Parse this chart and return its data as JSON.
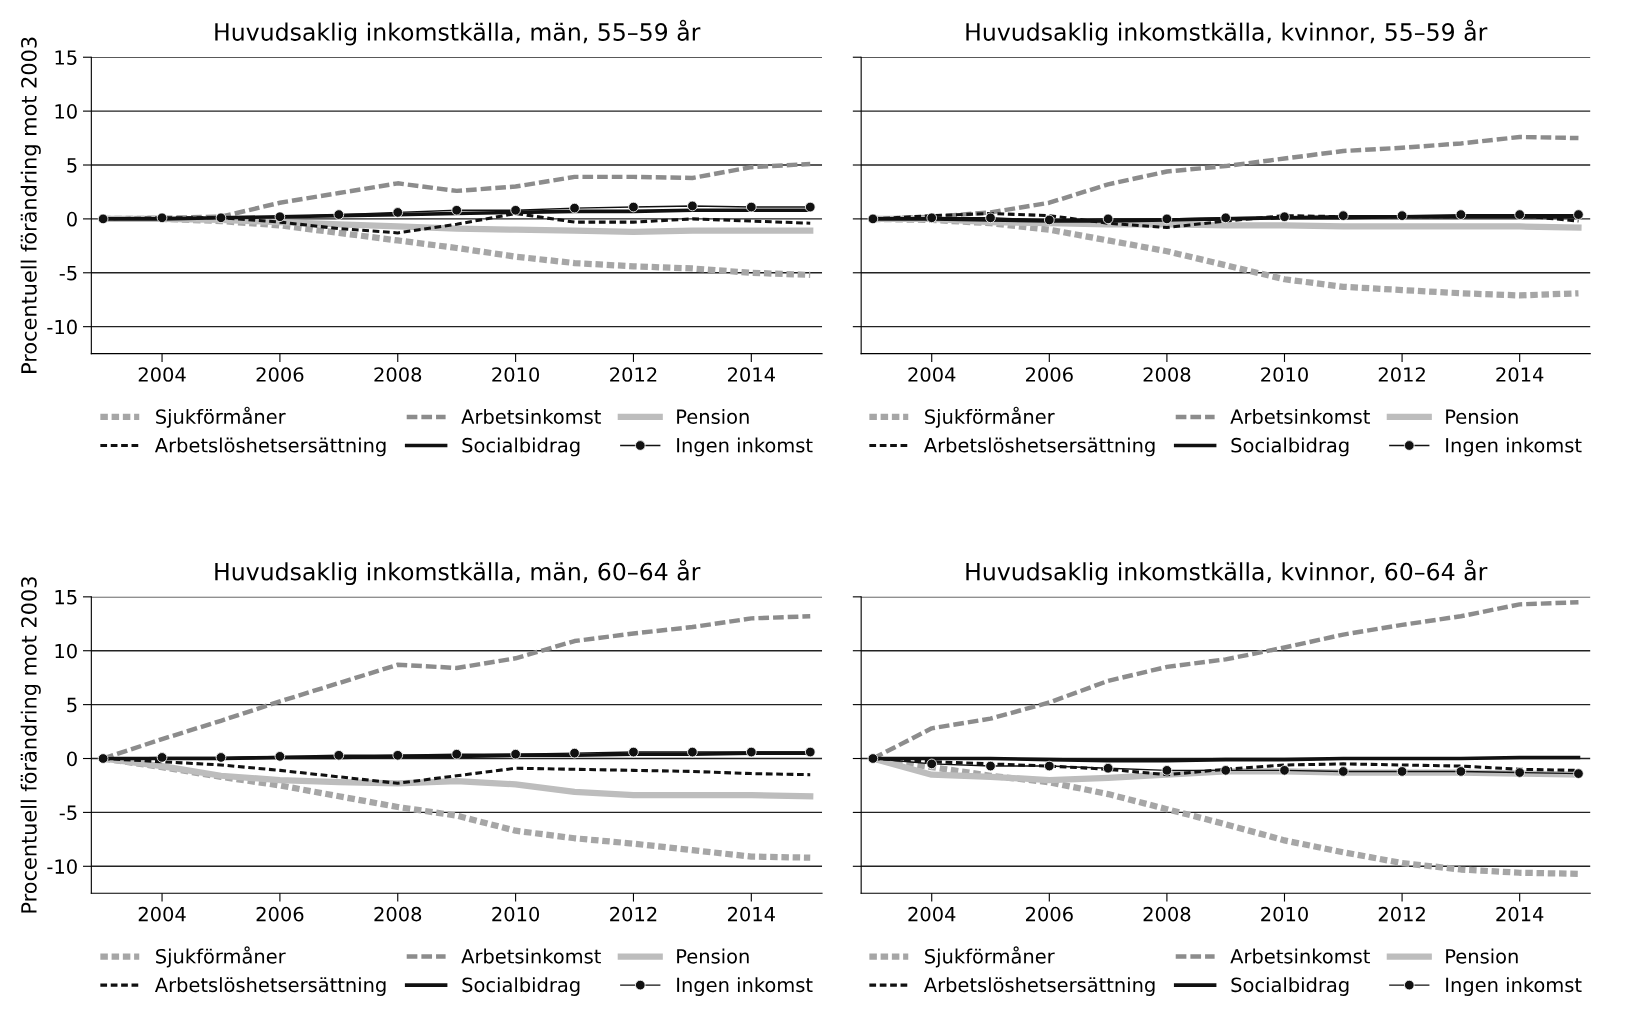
{
  "chart_data": [
    {
      "type": "line",
      "title": "Huvudsaklig inkomstkälla, män, 55–59 år",
      "ylabel": "Procentuell förändring mot 2003",
      "x": [
        2003,
        2004,
        2005,
        2006,
        2007,
        2008,
        2009,
        2010,
        2011,
        2012,
        2013,
        2014,
        2015
      ],
      "xlim": [
        2002.8,
        2015.2
      ],
      "xticks": [
        2004,
        2006,
        2008,
        2010,
        2012,
        2014
      ],
      "ylim": [
        -12.5,
        15
      ],
      "yticks": [
        -10,
        -5,
        0,
        5,
        10,
        15
      ],
      "grid": "y",
      "legend": "bottom",
      "series": [
        {
          "name": "Sjukförmåner",
          "color": "#a6a6a6",
          "line_style": "dashed",
          "values": [
            0,
            0,
            -0.2,
            -0.6,
            -1.3,
            -2.0,
            -2.7,
            -3.5,
            -4.1,
            -4.4,
            -4.6,
            -5.0,
            -5.2
          ]
        },
        {
          "name": "Arbetsinkomst",
          "color": "#8c8c8c",
          "line_style": "dashed",
          "values": [
            0,
            0.1,
            0.2,
            1.5,
            2.4,
            3.3,
            2.6,
            3.0,
            3.9,
            3.9,
            3.8,
            4.8,
            5.1
          ]
        },
        {
          "name": "Pension",
          "color": "#bdbdbd",
          "line_style": "solid",
          "values": [
            0,
            0,
            -0.1,
            -0.3,
            -0.5,
            -0.7,
            -0.9,
            -1.0,
            -1.1,
            -1.2,
            -1.1,
            -1.1,
            -1.1
          ]
        },
        {
          "name": "Arbetslöshetsersättning",
          "color": "#111111",
          "line_style": "dashed",
          "values": [
            0,
            0.1,
            0.1,
            -0.3,
            -0.9,
            -1.3,
            -0.5,
            0.5,
            -0.3,
            -0.3,
            0.0,
            -0.2,
            -0.4
          ]
        },
        {
          "name": "Socialbidrag",
          "color": "#111111",
          "line_style": "solid",
          "values": [
            0,
            0,
            0.1,
            0.2,
            0.3,
            0.4,
            0.5,
            0.6,
            0.7,
            0.7,
            0.8,
            0.8,
            0.8
          ]
        },
        {
          "name": "Ingen inkomst",
          "color": "#111111",
          "line_style": "solid",
          "marker": "circle",
          "values": [
            0,
            0.1,
            0.1,
            0.2,
            0.4,
            0.6,
            0.8,
            0.8,
            1.0,
            1.1,
            1.2,
            1.1,
            1.1
          ]
        }
      ]
    },
    {
      "type": "line",
      "title": "Huvudsaklig inkomstkälla, kvinnor, 55–59 år",
      "x": [
        2003,
        2004,
        2005,
        2006,
        2007,
        2008,
        2009,
        2010,
        2011,
        2012,
        2013,
        2014,
        2015
      ],
      "xlim": [
        2002.8,
        2015.2
      ],
      "xticks": [
        2004,
        2006,
        2008,
        2010,
        2012,
        2014
      ],
      "ylim": [
        -12.5,
        15
      ],
      "yticks": [
        -10,
        -5,
        0,
        5,
        10,
        15
      ],
      "grid": "y",
      "legend": "bottom",
      "tick_labels": "x",
      "series": [
        {
          "name": "Sjukförmåner",
          "color": "#a6a6a6",
          "line_style": "dashed",
          "values": [
            0,
            -0.1,
            -0.4,
            -1.0,
            -2.0,
            -3.0,
            -4.3,
            -5.6,
            -6.3,
            -6.6,
            -6.9,
            -7.1,
            -6.9
          ]
        },
        {
          "name": "Arbetsinkomst",
          "color": "#8c8c8c",
          "line_style": "dashed",
          "values": [
            0,
            0.2,
            0.6,
            1.5,
            3.2,
            4.4,
            4.9,
            5.6,
            6.3,
            6.6,
            7.0,
            7.6,
            7.5
          ]
        },
        {
          "name": "Pension",
          "color": "#bdbdbd",
          "line_style": "solid",
          "values": [
            0,
            0,
            -0.3,
            -0.4,
            -0.5,
            -0.5,
            -0.6,
            -0.6,
            -0.7,
            -0.7,
            -0.7,
            -0.7,
            -0.8
          ]
        },
        {
          "name": "Arbetslöshetsersättning",
          "color": "#111111",
          "line_style": "dashed",
          "values": [
            0,
            0.3,
            0.5,
            0.3,
            -0.4,
            -0.8,
            -0.2,
            0.3,
            0.2,
            0.2,
            0.2,
            0.3,
            -0.2
          ]
        },
        {
          "name": "Socialbidrag",
          "color": "#111111",
          "line_style": "solid",
          "values": [
            0,
            0,
            -0.1,
            -0.2,
            -0.2,
            -0.1,
            0,
            0.1,
            0.1,
            0.2,
            0.2,
            0.2,
            0.2
          ]
        },
        {
          "name": "Ingen inkomst",
          "color": "#111111",
          "line_style": "solid",
          "marker": "circle",
          "values": [
            0,
            0.1,
            0.1,
            -0.1,
            0,
            0,
            0.1,
            0.2,
            0.3,
            0.3,
            0.4,
            0.4,
            0.4
          ]
        }
      ]
    },
    {
      "type": "line",
      "title": "Huvudsaklig inkomstkälla, män, 60–64 år",
      "ylabel": "Procentuell förändring mot 2003",
      "x": [
        2003,
        2004,
        2005,
        2006,
        2007,
        2008,
        2009,
        2010,
        2011,
        2012,
        2013,
        2014,
        2015
      ],
      "xlim": [
        2002.8,
        2015.2
      ],
      "xticks": [
        2004,
        2006,
        2008,
        2010,
        2012,
        2014
      ],
      "ylim": [
        -12.5,
        15
      ],
      "yticks": [
        -10,
        -5,
        0,
        5,
        10,
        15
      ],
      "grid": "y",
      "legend": "bottom",
      "series": [
        {
          "name": "Sjukförmåner",
          "color": "#a6a6a6",
          "line_style": "dashed",
          "values": [
            0,
            -0.8,
            -1.7,
            -2.5,
            -3.5,
            -4.5,
            -5.3,
            -6.7,
            -7.4,
            -7.9,
            -8.5,
            -9.1,
            -9.2
          ]
        },
        {
          "name": "Arbetsinkomst",
          "color": "#8c8c8c",
          "line_style": "dashed",
          "values": [
            0,
            1.8,
            3.5,
            5.3,
            7.0,
            8.7,
            8.4,
            9.3,
            10.9,
            11.6,
            12.2,
            13.0,
            13.2
          ]
        },
        {
          "name": "Pension",
          "color": "#bdbdbd",
          "line_style": "solid",
          "values": [
            0,
            -0.7,
            -1.6,
            -2.0,
            -2.2,
            -2.3,
            -2.1,
            -2.4,
            -3.1,
            -3.4,
            -3.4,
            -3.4,
            -3.5
          ]
        },
        {
          "name": "Arbetslöshetsersättning",
          "color": "#111111",
          "line_style": "dashed",
          "values": [
            0,
            -0.3,
            -0.6,
            -1.1,
            -1.7,
            -2.3,
            -1.6,
            -0.9,
            -1.0,
            -1.1,
            -1.2,
            -1.4,
            -1.5
          ]
        },
        {
          "name": "Socialbidrag",
          "color": "#111111",
          "line_style": "solid",
          "values": [
            0,
            0,
            0,
            0.1,
            0.1,
            0.2,
            0.2,
            0.3,
            0.3,
            0.4,
            0.4,
            0.5,
            0.5
          ]
        },
        {
          "name": "Ingen inkomst",
          "color": "#111111",
          "line_style": "solid",
          "marker": "circle",
          "values": [
            0,
            0.1,
            0.1,
            0.2,
            0.3,
            0.3,
            0.4,
            0.4,
            0.5,
            0.6,
            0.6,
            0.6,
            0.6
          ]
        }
      ]
    },
    {
      "type": "line",
      "title": "Huvudsaklig inkomstkälla, kvinnor, 60–64 år",
      "x": [
        2003,
        2004,
        2005,
        2006,
        2007,
        2008,
        2009,
        2010,
        2011,
        2012,
        2013,
        2014,
        2015
      ],
      "xlim": [
        2002.8,
        2015.2
      ],
      "xticks": [
        2004,
        2006,
        2008,
        2010,
        2012,
        2014
      ],
      "ylim": [
        -12.5,
        15
      ],
      "yticks": [
        -10,
        -5,
        0,
        5,
        10,
        15
      ],
      "grid": "y",
      "legend": "bottom",
      "tick_labels": "x",
      "series": [
        {
          "name": "Sjukförmåner",
          "color": "#a6a6a6",
          "line_style": "dashed",
          "values": [
            0,
            -0.8,
            -1.6,
            -2.2,
            -3.3,
            -4.7,
            -6.1,
            -7.6,
            -8.7,
            -9.7,
            -10.3,
            -10.6,
            -10.7
          ]
        },
        {
          "name": "Arbetsinkomst",
          "color": "#8c8c8c",
          "line_style": "dashed",
          "values": [
            0,
            2.8,
            3.7,
            5.2,
            7.2,
            8.5,
            9.2,
            10.3,
            11.5,
            12.4,
            13.2,
            14.3,
            14.5
          ]
        },
        {
          "name": "Pension",
          "color": "#bdbdbd",
          "line_style": "solid",
          "values": [
            0,
            -1.5,
            -1.7,
            -2.0,
            -1.8,
            -1.5,
            -1.2,
            -1.2,
            -1.3,
            -1.3,
            -1.3,
            -1.4,
            -1.5
          ]
        },
        {
          "name": "Arbetslöshetsersättning",
          "color": "#111111",
          "line_style": "dashed",
          "values": [
            0,
            -0.3,
            -0.5,
            -0.7,
            -1.0,
            -1.5,
            -1.0,
            -0.6,
            -0.5,
            -0.6,
            -0.7,
            -1.0,
            -1.1
          ]
        },
        {
          "name": "Socialbidrag",
          "color": "#111111",
          "line_style": "solid",
          "values": [
            0,
            0,
            0,
            -0.1,
            -0.2,
            -0.2,
            -0.1,
            -0.1,
            0,
            0,
            0,
            0.1,
            0.1
          ]
        },
        {
          "name": "Ingen inkomst",
          "color": "#111111",
          "line_style": "solid",
          "marker": "circle",
          "values": [
            0,
            -0.5,
            -0.7,
            -0.7,
            -0.9,
            -1.1,
            -1.1,
            -1.1,
            -1.2,
            -1.2,
            -1.2,
            -1.3,
            -1.4
          ]
        }
      ]
    }
  ]
}
